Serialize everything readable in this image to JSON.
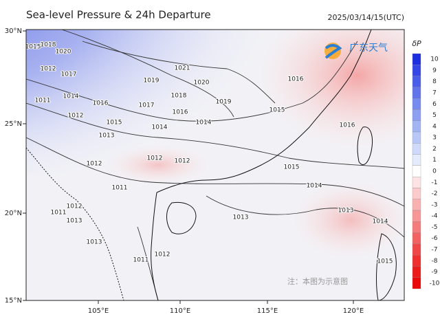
{
  "header": {
    "title": "Sea-level Pressure & 24h Departure",
    "timestamp": "2025/03/14/15(UTC)",
    "logo": "广东天气"
  },
  "map": {
    "lon_ticks": [
      "105°E",
      "110°E",
      "115°E",
      "120°E"
    ],
    "lat_ticks": [
      "30°N",
      "25°N",
      "20°N",
      "15°N"
    ],
    "isobar_labels": [
      1015,
      1018,
      1020,
      1012,
      1017,
      1021,
      1019,
      1020,
      1014,
      1016,
      1018,
      1011,
      1017,
      1019,
      1016,
      1012,
      1015,
      1014,
      1015,
      1016,
      1013,
      1014,
      1016,
      1012,
      1012,
      1012,
      1015,
      1014,
      1011,
      1012,
      1011,
      1013,
      1013,
      1014,
      1013,
      1011,
      1012,
      1015,
      1013
    ],
    "note": "注：本图为示意图"
  },
  "colorbar": {
    "label": "δP",
    "ticks": [
      10,
      9,
      8,
      7,
      6,
      5,
      4,
      3,
      2,
      1,
      0,
      -1,
      -2,
      -3,
      -4,
      -5,
      -6,
      -7,
      -8,
      -9,
      -10
    ],
    "colors": [
      "#1e2fe0",
      "#3446e6",
      "#4a5de8",
      "#6174ea",
      "#778aed",
      "#8d9ff0",
      "#a3b4f3",
      "#b9c7f6",
      "#cfd9f9",
      "#e4ebfc",
      "#ffffff",
      "#fde3e3",
      "#fbcaca",
      "#f9b0b0",
      "#f79696",
      "#f47c7c",
      "#f26262",
      "#f04848",
      "#ee3030",
      "#ec1c1c",
      "#ea0a0a"
    ]
  }
}
